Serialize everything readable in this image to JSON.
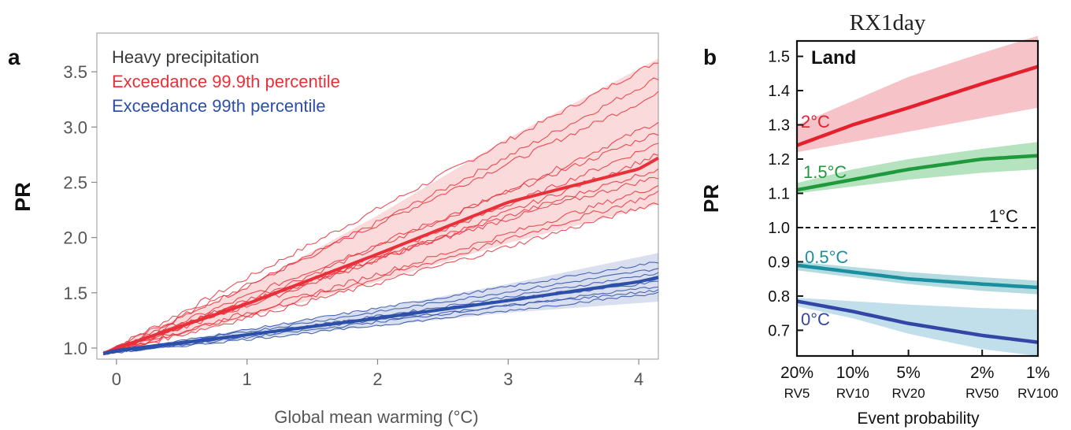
{
  "figure": {
    "top_title": "RX1day"
  },
  "chart_data": [
    {
      "panel_letter": "a",
      "type": "line",
      "xlabel": "Global mean warming (°C)",
      "ylabel": "PR",
      "xlim": [
        -0.15,
        4.15
      ],
      "ylim": [
        0.9,
        3.85
      ],
      "xticks": [
        0,
        1,
        2,
        3,
        4
      ],
      "xtick_labels": [
        "0",
        "1",
        "2",
        "3",
        "4"
      ],
      "yticks": [
        1.0,
        1.5,
        2.0,
        2.5,
        3.0,
        3.5
      ],
      "ytick_labels": [
        "1.0",
        "1.5",
        "2.0",
        "2.5",
        "3.0",
        "3.5"
      ],
      "legend_placement": "top-left",
      "legend": [
        {
          "text": "Heavy precipitation",
          "color": "#3a3a3a"
        },
        {
          "text": "Exceedance 99.9th percentile",
          "color": "#e8303a"
        },
        {
          "text": "Exceedance 99th percentile",
          "color": "#2c4fa8"
        }
      ],
      "series": [
        {
          "name": "Exceedance 99.9th percentile",
          "color": "#e8303a",
          "mean": {
            "x": [
              -0.1,
              0,
              1,
              2,
              3,
              4,
              4.15
            ],
            "y": [
              0.95,
              1.0,
              1.4,
              1.85,
              2.32,
              2.62,
              2.72
            ]
          },
          "band_low": {
            "x": [
              -0.1,
              1,
              2,
              3,
              4.15
            ],
            "y": [
              0.93,
              1.28,
              1.6,
              1.95,
              2.3
            ]
          },
          "band_high": {
            "x": [
              -0.1,
              1,
              2,
              3,
              4.15
            ],
            "y": [
              0.97,
              1.55,
              2.2,
              2.9,
              3.62
            ]
          },
          "members_final_y": [
            3.6,
            3.45,
            3.3,
            3.05,
            2.95,
            2.85,
            2.75,
            2.62,
            2.55,
            2.47,
            2.4,
            2.32
          ]
        },
        {
          "name": "Exceedance 99th percentile",
          "color": "#2c4fa8",
          "mean": {
            "x": [
              -0.1,
              0,
              1,
              2,
              3,
              4,
              4.15
            ],
            "y": [
              0.95,
              0.98,
              1.12,
              1.27,
              1.43,
              1.6,
              1.64
            ]
          },
          "band_low": {
            "x": [
              -0.1,
              1,
              2,
              3,
              4.15
            ],
            "y": [
              0.94,
              1.08,
              1.2,
              1.32,
              1.42
            ]
          },
          "band_high": {
            "x": [
              -0.1,
              1,
              2,
              3,
              4.15
            ],
            "y": [
              0.96,
              1.17,
              1.36,
              1.58,
              1.86
            ]
          },
          "members_final_y": [
            1.78,
            1.72,
            1.68,
            1.63,
            1.6,
            1.56,
            1.52,
            1.5
          ]
        }
      ]
    },
    {
      "panel_letter": "b",
      "type": "line",
      "panel_label": "Land",
      "xlabel": "Event probability",
      "ylabel": "PR",
      "ylim": [
        0.625,
        1.545
      ],
      "yticks": [
        0.7,
        0.8,
        0.9,
        1.0,
        1.1,
        1.2,
        1.3,
        1.4,
        1.5
      ],
      "ytick_labels": [
        "0.7",
        "0.8",
        "0.9",
        "1.0",
        "1.1",
        "1.2",
        "1.3",
        "1.4",
        "1.5"
      ],
      "xscale": "log",
      "x_direction": "decreasing",
      "xticks": [
        0.2,
        0.1,
        0.05,
        0.02,
        0.01
      ],
      "xtick_labels": [
        "20%",
        "10%",
        "5%",
        "2%",
        "1%"
      ],
      "xtick_sublabels": [
        "RV5",
        "RV10",
        "RV20",
        "RV50",
        "RV100"
      ],
      "reference_line": {
        "y": 1.0,
        "style": "dashed",
        "label": "1°C"
      },
      "series": [
        {
          "name": "2°C",
          "color": "#e3202c",
          "band_color": "#f1a4aa",
          "x": [
            0.2,
            0.1,
            0.05,
            0.02,
            0.01
          ],
          "y": [
            1.24,
            1.3,
            1.35,
            1.42,
            1.47
          ],
          "low": [
            1.22,
            1.25,
            1.28,
            1.32,
            1.35
          ],
          "high": [
            1.3,
            1.37,
            1.44,
            1.51,
            1.56
          ]
        },
        {
          "name": "1.5°C",
          "color": "#1e9a3c",
          "band_color": "#8fd49c",
          "x": [
            0.2,
            0.1,
            0.05,
            0.02,
            0.01
          ],
          "y": [
            1.11,
            1.14,
            1.17,
            1.2,
            1.21
          ],
          "low": [
            1.1,
            1.12,
            1.14,
            1.16,
            1.17
          ],
          "high": [
            1.13,
            1.17,
            1.2,
            1.23,
            1.25
          ]
        },
        {
          "name": "0.5°C",
          "color": "#1a8fa0",
          "band_color": "#8cc9d0",
          "x": [
            0.2,
            0.1,
            0.05,
            0.02,
            0.01
          ],
          "y": [
            0.89,
            0.87,
            0.85,
            0.835,
            0.825
          ],
          "low": [
            0.875,
            0.855,
            0.835,
            0.815,
            0.805
          ],
          "high": [
            0.9,
            0.885,
            0.87,
            0.855,
            0.845
          ]
        },
        {
          "name": "0°C",
          "color": "#3346a6",
          "band_color": "#9fcce0",
          "x": [
            0.2,
            0.1,
            0.05,
            0.02,
            0.01
          ],
          "y": [
            0.785,
            0.755,
            0.72,
            0.685,
            0.665
          ],
          "low": [
            0.77,
            0.735,
            0.69,
            0.645,
            0.625
          ],
          "high": [
            0.795,
            0.785,
            0.775,
            0.765,
            0.76
          ]
        }
      ]
    }
  ]
}
